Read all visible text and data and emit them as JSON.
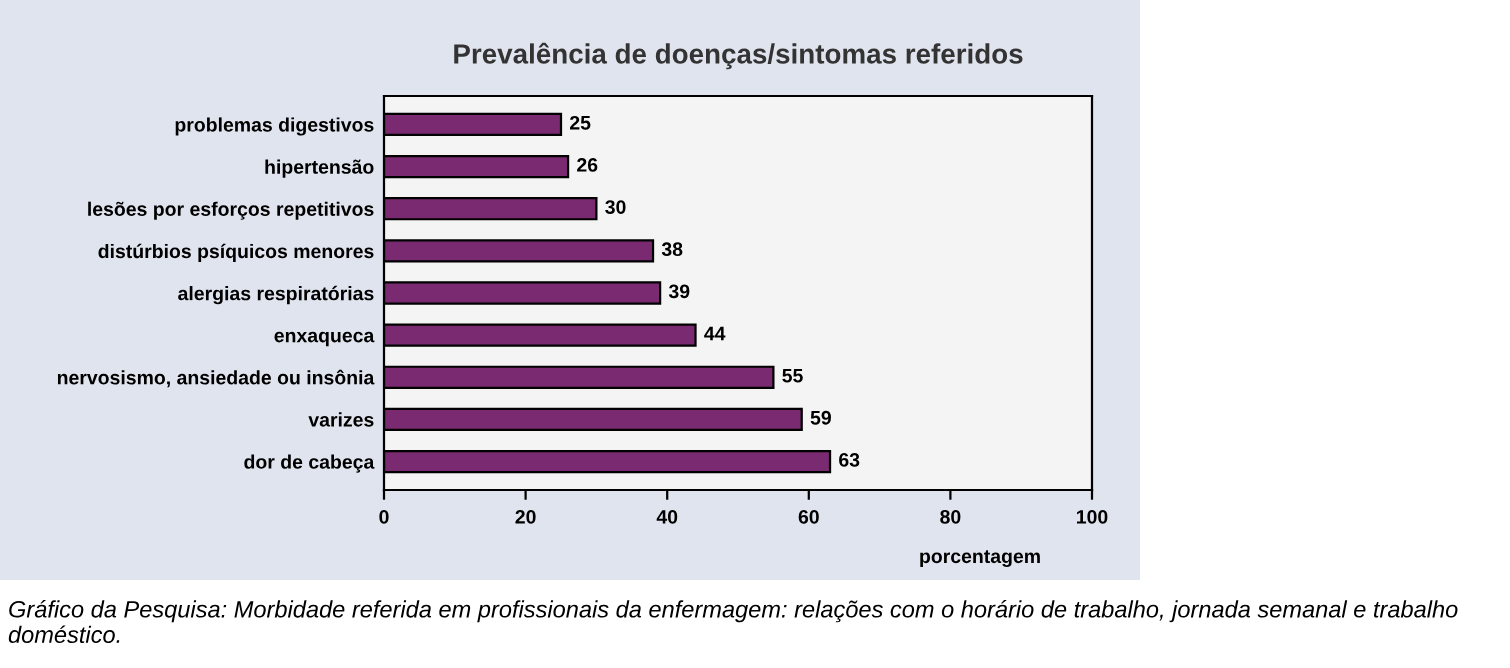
{
  "chart_data": {
    "type": "bar",
    "orientation": "horizontal",
    "title": "Prevalência de doenças/sintomas referidos",
    "xlabel": "porcentagem",
    "categories": [
      "problemas digestivos",
      "hipertensão",
      "lesões por esforços repetitivos",
      "distúrbios psíquicos menores",
      "alergias respiratórias",
      "enxaqueca",
      "nervosismo, ansiedade ou insônia",
      "varizes",
      "dor de cabeça"
    ],
    "values": [
      25,
      26,
      30,
      38,
      39,
      44,
      55,
      59,
      63
    ],
    "color": "#7a2a70",
    "xlim": [
      0,
      100
    ],
    "xticks": [
      0,
      20,
      40,
      60,
      80,
      100
    ],
    "data_labels": true,
    "grid": false,
    "legend": false,
    "annotations": [
      "Gráfico da Pesquisa: Morbidade referida em profissionais da enfermagem: relações com o horário de trabalho, jornada semanal e trabalho doméstico."
    ]
  }
}
